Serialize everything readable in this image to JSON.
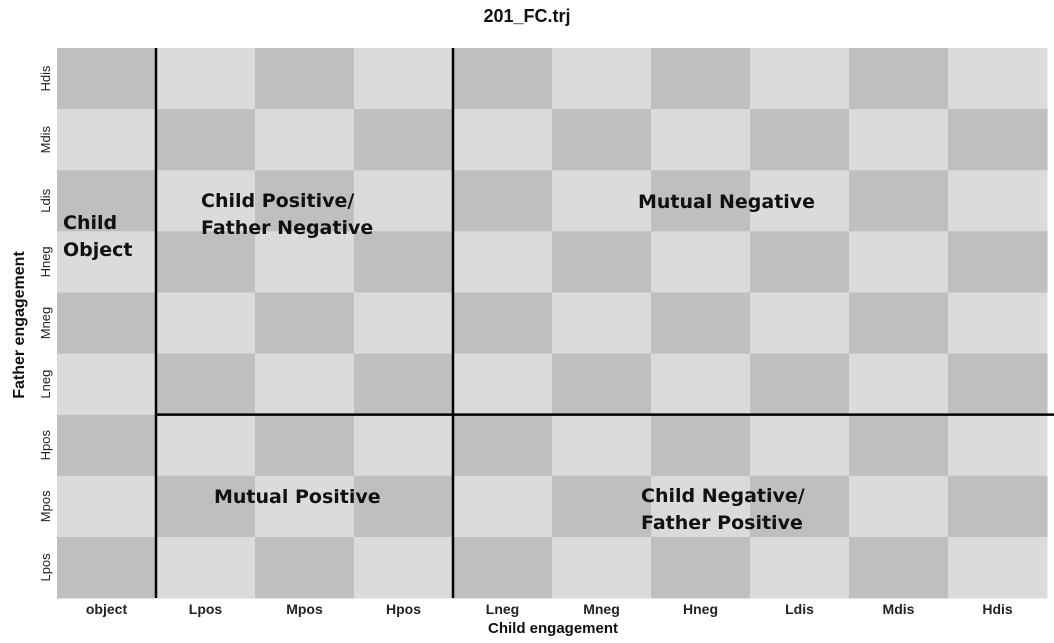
{
  "chart_data": {
    "type": "heatmap",
    "title": "201_FC.trj",
    "xlabel": "Child engagement",
    "ylabel": "Father engagement",
    "x_categories": [
      "object",
      "Lpos",
      "Mpos",
      "Hpos",
      "Lneg",
      "Mneg",
      "Hneg",
      "Ldis",
      "Mdis",
      "Hdis"
    ],
    "y_categories_bottom_to_top": [
      "Lpos",
      "Mpos",
      "Hpos",
      "Lneg",
      "Mneg",
      "Hneg",
      "Ldis",
      "Mdis",
      "Hdis"
    ],
    "cell_colors": {
      "dark": "#bfbfbf",
      "light": "#dbdbdb"
    },
    "divider_color": "#000000",
    "regions": [
      {
        "label": "Child\nObject"
      },
      {
        "label": "Child Positive/\nFather Negative"
      },
      {
        "label": "Mutual Negative"
      },
      {
        "label": "Mutual Positive"
      },
      {
        "label": "Child Negative/\nFather Positive"
      }
    ]
  }
}
